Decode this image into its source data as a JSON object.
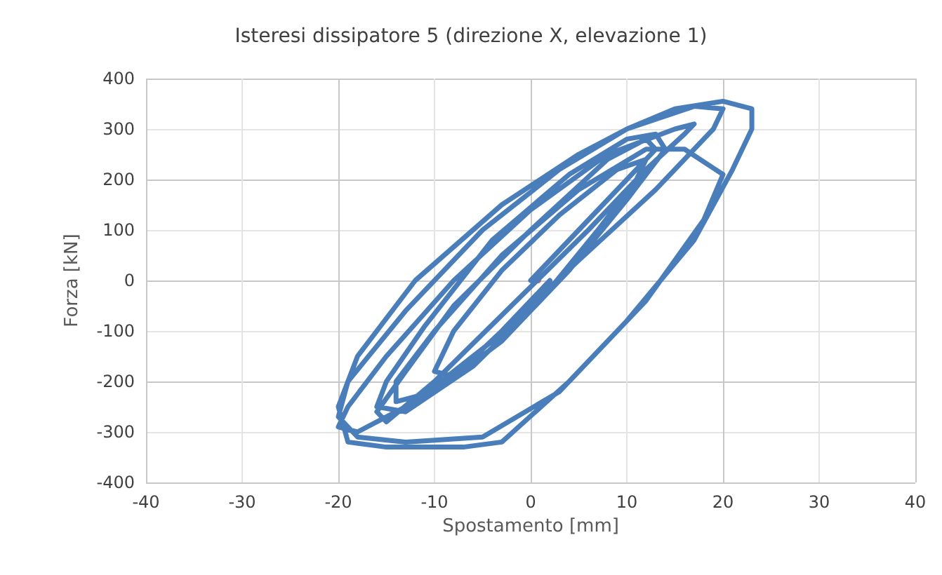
{
  "chart_data": {
    "type": "line",
    "title": "Isteresi dissipatore 5 (direzione X, elevazione 1)",
    "xlabel": "Spostamento [mm]",
    "ylabel": "Forza [kN]",
    "xlim": [
      -40,
      40
    ],
    "xticks": [
      -40,
      -30,
      -20,
      -10,
      0,
      10,
      20,
      30,
      40
    ],
    "ylim": [
      -400,
      400
    ],
    "yticks": [
      -400,
      -300,
      -200,
      -100,
      0,
      100,
      200,
      300,
      400
    ],
    "grid": true,
    "line_style": "solid",
    "series": [
      {
        "color": "#4a7ebb",
        "marker": "none",
        "x": [
          0,
          5,
          10,
          13,
          12,
          8,
          0,
          -8,
          -13,
          -16,
          -15,
          -10,
          -2,
          6,
          12,
          16,
          17,
          15,
          8,
          0,
          -8,
          -15,
          -19,
          -20,
          -18,
          -12,
          -4,
          5,
          13,
          19,
          20,
          17,
          10,
          3,
          -5,
          -13,
          -19,
          -20,
          -18,
          -13,
          -5,
          3,
          10,
          17,
          21,
          23,
          23,
          20,
          15,
          10,
          5,
          -3,
          -12,
          -18,
          -20,
          -19,
          -15,
          -7,
          -3,
          4,
          12,
          18,
          20,
          16,
          12,
          5,
          -3,
          -10,
          -14,
          -14,
          -10,
          -3,
          4,
          10,
          14,
          13,
          10,
          4,
          -4,
          -11,
          -15,
          -16,
          -13,
          -6,
          1,
          7,
          11,
          12,
          9,
          3,
          -3,
          -8,
          -10,
          -8,
          -3,
          2
        ],
        "values": [
          0,
          100,
          200,
          260,
          280,
          240,
          100,
          -50,
          -180,
          -260,
          -280,
          -200,
          -50,
          100,
          220,
          290,
          310,
          300,
          250,
          140,
          0,
          -150,
          -250,
          -290,
          -300,
          -240,
          -120,
          40,
          180,
          300,
          340,
          345,
          300,
          220,
          100,
          -60,
          -200,
          -270,
          -310,
          -320,
          -310,
          -220,
          -80,
          80,
          220,
          300,
          340,
          355,
          340,
          300,
          250,
          150,
          0,
          -150,
          -250,
          -320,
          -330,
          -330,
          -320,
          -200,
          -40,
          120,
          210,
          260,
          260,
          180,
          50,
          -100,
          -200,
          -240,
          -220,
          -120,
          20,
          160,
          260,
          290,
          280,
          210,
          80,
          -90,
          -200,
          -250,
          -260,
          -170,
          -40,
          100,
          200,
          240,
          220,
          130,
          20,
          -100,
          -180,
          -190,
          -100,
          0
        ]
      },
      {
        "type": "scatter",
        "color": "#c0504d",
        "marker": "circle",
        "x": [
          0.8
        ],
        "values": [
          0
        ]
      }
    ]
  }
}
